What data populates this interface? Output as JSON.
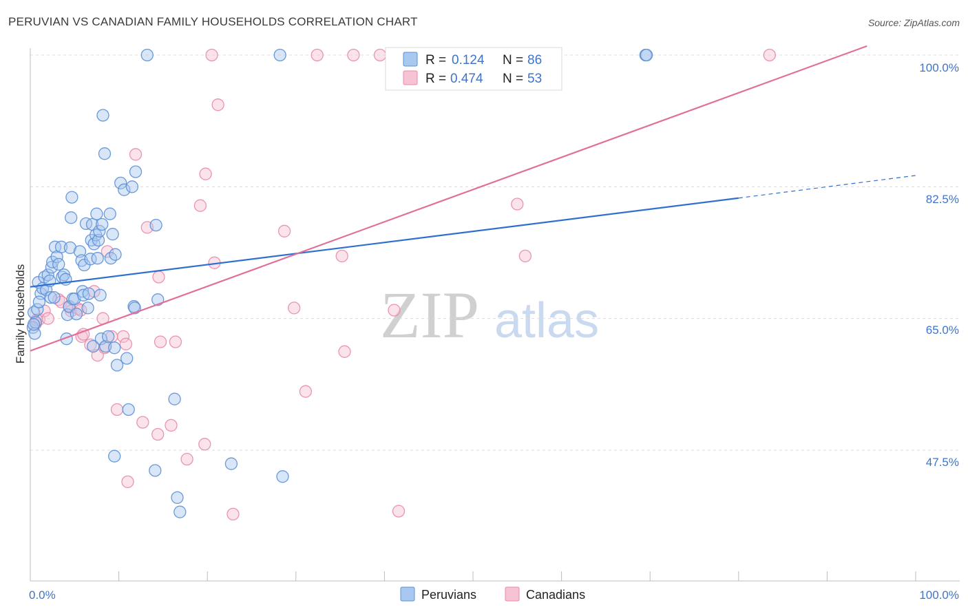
{
  "header": {
    "title": "PERUVIAN VS CANADIAN FAMILY HOUSEHOLDS CORRELATION CHART",
    "source": "Source: ZipAtlas.com"
  },
  "watermark": {
    "zip": "ZIP",
    "atlas": "atlas"
  },
  "colors": {
    "peruvians_fill": "#a8c8ef",
    "peruvians_stroke": "#5b8fd6",
    "peruvians_line": "#2f6fcf",
    "canadians_fill": "#f7c2d3",
    "canadians_stroke": "#e88aa8",
    "canadians_line": "#e0709a",
    "tick_text": "#3f74c9",
    "grid": "#dcdcdc"
  },
  "legend": {
    "rows": [
      {
        "r_label": "R =",
        "r_value": "0.124",
        "n_label": "N =",
        "n_value": "86"
      },
      {
        "r_label": "R =",
        "r_value": "0.474",
        "n_label": "N =",
        "n_value": "53"
      }
    ]
  },
  "bottom_legend": {
    "peruvians": "Peruvians",
    "canadians": "Canadians"
  },
  "chart_data": {
    "type": "scatter",
    "title": "PERUVIAN VS CANADIAN FAMILY HOUSEHOLDS CORRELATION CHART",
    "xlabel": "",
    "ylabel": "Family Households",
    "xlim": [
      0,
      100
    ],
    "ylim": [
      30,
      102
    ],
    "x_tick_labels": [
      "0.0%",
      "100.0%"
    ],
    "y_ticks": [
      47.5,
      65.0,
      82.5,
      100.0
    ],
    "y_tick_labels": [
      "47.5%",
      "65.0%",
      "82.5%",
      "100.0%"
    ],
    "grid": true,
    "series": [
      {
        "name": "Peruvians",
        "r": 0.124,
        "n": 86,
        "trend": {
          "x0": 0,
          "y0": 69.2,
          "x1": 80,
          "y1": 81.0,
          "dashed_to_x": 100,
          "dashed_to_y": 84.0
        },
        "points": [
          [
            0.3,
            63.8
          ],
          [
            0.4,
            65.8
          ],
          [
            0.5,
            63.0
          ],
          [
            0.6,
            64.5
          ],
          [
            0.8,
            66.2
          ],
          [
            0.9,
            69.8
          ],
          [
            1.2,
            68.3
          ],
          [
            1.4,
            69.0
          ],
          [
            1.6,
            70.5
          ],
          [
            1.8,
            68.8
          ],
          [
            2.0,
            70.8
          ],
          [
            2.2,
            70.0
          ],
          [
            2.3,
            67.8
          ],
          [
            2.4,
            71.8
          ],
          [
            2.5,
            72.5
          ],
          [
            2.7,
            67.8
          ],
          [
            2.8,
            74.5
          ],
          [
            3.0,
            73.2
          ],
          [
            3.2,
            72.2
          ],
          [
            3.5,
            74.5
          ],
          [
            3.6,
            70.5
          ],
          [
            3.8,
            70.8
          ],
          [
            4.0,
            70.2
          ],
          [
            4.1,
            62.3
          ],
          [
            4.2,
            65.5
          ],
          [
            4.4,
            66.6
          ],
          [
            4.5,
            74.4
          ],
          [
            4.6,
            78.4
          ],
          [
            4.7,
            81.1
          ],
          [
            4.8,
            67.6
          ],
          [
            5.0,
            67.6
          ],
          [
            5.2,
            65.6
          ],
          [
            5.6,
            73.9
          ],
          [
            5.8,
            72.7
          ],
          [
            5.9,
            68.6
          ],
          [
            6.0,
            68.1
          ],
          [
            6.1,
            72.1
          ],
          [
            6.3,
            77.6
          ],
          [
            6.5,
            66.4
          ],
          [
            6.6,
            68.3
          ],
          [
            6.8,
            72.9
          ],
          [
            6.9,
            75.4
          ],
          [
            7.0,
            77.5
          ],
          [
            7.1,
            61.3
          ],
          [
            7.2,
            74.9
          ],
          [
            7.4,
            76.1
          ],
          [
            7.5,
            78.9
          ],
          [
            7.6,
            73.0
          ],
          [
            7.7,
            75.4
          ],
          [
            7.8,
            76.6
          ],
          [
            7.9,
            68.1
          ],
          [
            8.0,
            62.3
          ],
          [
            8.1,
            77.5
          ],
          [
            8.2,
            92.0
          ],
          [
            8.4,
            86.9
          ],
          [
            8.5,
            61.3
          ],
          [
            8.8,
            62.6
          ],
          [
            9.0,
            78.9
          ],
          [
            9.1,
            73.0
          ],
          [
            9.3,
            76.2
          ],
          [
            9.5,
            61.1
          ],
          [
            9.6,
            73.5
          ],
          [
            9.8,
            58.8
          ],
          [
            10.2,
            83.0
          ],
          [
            10.6,
            82.1
          ],
          [
            10.9,
            59.7
          ],
          [
            11.1,
            52.9
          ],
          [
            11.5,
            82.5
          ],
          [
            11.7,
            66.6
          ],
          [
            11.8,
            66.4
          ],
          [
            11.9,
            84.5
          ],
          [
            13.2,
            100.0
          ],
          [
            14.1,
            44.8
          ],
          [
            14.2,
            77.4
          ],
          [
            14.4,
            67.5
          ],
          [
            9.5,
            46.7
          ],
          [
            16.3,
            54.3
          ],
          [
            16.6,
            41.2
          ],
          [
            16.9,
            39.3
          ],
          [
            22.7,
            45.7
          ],
          [
            28.2,
            100.0
          ],
          [
            28.5,
            44.0
          ],
          [
            69.5,
            100.0
          ],
          [
            69.6,
            100.0
          ],
          [
            0.4,
            64.2
          ],
          [
            1.0,
            67.2
          ]
        ]
      },
      {
        "name": "Canadians",
        "r": 0.474,
        "n": 53,
        "trend": {
          "x0": 0,
          "y0": 60.7,
          "x1": 94.5,
          "y1": 101.2
        },
        "points": [
          [
            0.6,
            64.3
          ],
          [
            0.7,
            64.8
          ],
          [
            1.0,
            64.9
          ],
          [
            1.6,
            66.0
          ],
          [
            2.0,
            65.0
          ],
          [
            3.2,
            67.5
          ],
          [
            3.5,
            67.2
          ],
          [
            4.4,
            66.5
          ],
          [
            4.6,
            66.0
          ],
          [
            5.4,
            66.3
          ],
          [
            5.7,
            66.1
          ],
          [
            5.8,
            62.6
          ],
          [
            6.0,
            62.9
          ],
          [
            6.8,
            61.5
          ],
          [
            7.2,
            68.6
          ],
          [
            7.6,
            60.1
          ],
          [
            8.2,
            65.0
          ],
          [
            8.4,
            61.1
          ],
          [
            8.7,
            73.9
          ],
          [
            9.2,
            62.6
          ],
          [
            9.8,
            52.9
          ],
          [
            10.5,
            62.6
          ],
          [
            10.8,
            61.6
          ],
          [
            11.0,
            43.3
          ],
          [
            11.9,
            86.8
          ],
          [
            12.7,
            51.2
          ],
          [
            13.2,
            77.1
          ],
          [
            14.4,
            49.6
          ],
          [
            14.5,
            70.5
          ],
          [
            14.7,
            61.9
          ],
          [
            15.9,
            50.8
          ],
          [
            16.4,
            61.9
          ],
          [
            17.7,
            46.3
          ],
          [
            19.2,
            80.0
          ],
          [
            19.7,
            48.3
          ],
          [
            19.8,
            84.2
          ],
          [
            20.5,
            100.0
          ],
          [
            20.8,
            72.4
          ],
          [
            21.2,
            93.4
          ],
          [
            22.9,
            39.0
          ],
          [
            28.7,
            76.6
          ],
          [
            29.8,
            66.4
          ],
          [
            31.1,
            55.3
          ],
          [
            32.4,
            100.0
          ],
          [
            35.2,
            73.3
          ],
          [
            35.5,
            60.6
          ],
          [
            36.5,
            100.0
          ],
          [
            39.5,
            100.0
          ],
          [
            41.1,
            66.1
          ],
          [
            41.6,
            39.4
          ],
          [
            55.0,
            80.2
          ],
          [
            55.9,
            73.3
          ],
          [
            83.5,
            100.0
          ]
        ]
      }
    ]
  }
}
